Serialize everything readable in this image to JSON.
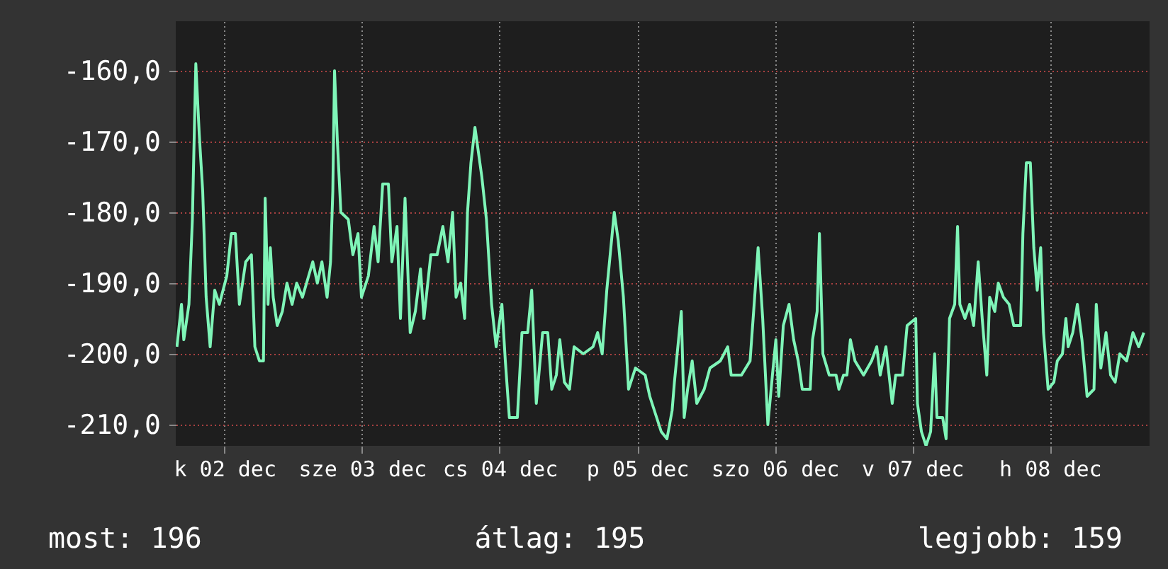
{
  "chart_data": {
    "type": "line",
    "x": [
      "--12-02T03:42",
      "--12-02T04:30",
      "--12-02T04:54",
      "--12-02T05:48",
      "--12-02T06:24",
      "--12-02T07:00",
      "--12-02T07:36",
      "--12-02T08:12",
      "--12-02T08:48",
      "--12-02T09:30",
      "--12-02T10:18",
      "--12-02T11:06",
      "--12-02T12:24",
      "--12-02T13:12",
      "--12-02T13:54",
      "--12-02T14:36",
      "--12-02T15:42",
      "--12-02T16:42",
      "--12-02T17:18",
      "--12-02T18:06",
      "--12-02T18:48",
      "--12-02T19:06",
      "--12-02T19:36",
      "--12-02T20:00",
      "--12-02T20:30",
      "--12-02T21:12",
      "--12-02T22:06",
      "--12-02T22:54",
      "--12-02T23:48",
      "--12-03T00:36",
      "--12-03T01:36",
      "--12-03T03:24",
      "--12-03T04:12",
      "--12-03T05:00",
      "--12-03T05:54",
      "--12-03T06:30",
      "--12-03T06:54",
      "--12-03T07:12",
      "--12-03T07:42",
      "--12-03T08:18",
      "--12-03T09:36",
      "--12-03T10:24",
      "--12-03T11:18",
      "--12-03T11:54",
      "--12-03T13:06",
      "--12-03T14:06",
      "--12-03T14:48",
      "--12-03T15:36",
      "--12-03T16:36",
      "--12-03T17:12",
      "--12-03T18:06",
      "--12-03T18:42",
      "--12-03T19:30",
      "--12-03T20:24",
      "--12-03T21:18",
      "--12-03T22:12",
      "--12-03T22:48",
      "--12-04T00:00",
      "--12-04T01:06",
      "--12-04T02:06",
      "--12-04T03:00",
      "--12-04T03:48",
      "--12-04T04:24",
      "--12-04T05:12",
      "--12-04T05:54",
      "--12-04T06:24",
      "--12-04T07:00",
      "--12-04T07:42",
      "--12-04T08:54",
      "--12-04T09:42",
      "--12-04T10:36",
      "--12-04T11:24",
      "--12-04T12:24",
      "--12-04T13:00",
      "--12-04T13:42",
      "--12-04T15:06",
      "--12-04T15:54",
      "--12-04T16:54",
      "--12-04T17:36",
      "--12-04T18:24",
      "--12-04T19:30",
      "--12-04T20:24",
      "--12-04T21:06",
      "--12-04T21:54",
      "--12-04T22:30",
      "--12-04T23:18",
      "--12-05T00:12",
      "--12-05T01:00",
      "--12-05T02:36",
      "--12-05T04:18",
      "--12-05T05:06",
      "--12-05T05:54",
      "--12-05T06:42",
      "--12-05T08:00",
      "--12-05T08:42",
      "--12-05T09:36",
      "--12-05T10:30",
      "--12-05T11:42",
      "--12-05T13:24",
      "--12-05T14:12",
      "--12-05T15:24",
      "--12-05T16:12",
      "--12-05T17:12",
      "--12-05T18:06",
      "--12-05T18:30",
      "--12-05T19:42",
      "--12-05T20:12",
      "--12-05T20:48",
      "--12-05T21:36",
      "--12-05T22:24",
      "--12-05T23:42",
      "--12-06T00:42",
      "--12-06T02:30",
      "--12-06T03:48",
      "--12-06T04:24",
      "--12-06T06:12",
      "--12-06T07:42",
      "--12-06T08:30",
      "--12-06T09:06",
      "--12-06T09:54",
      "--12-06T10:48",
      "--12-06T11:36",
      "--12-06T12:12",
      "--12-06T12:42",
      "--12-06T13:30",
      "--12-06T14:30",
      "--12-06T15:18",
      "--12-06T16:06",
      "--12-06T16:48",
      "--12-06T18:12",
      "--12-06T18:36",
      "--12-06T19:24",
      "--12-06T19:48",
      "--12-06T20:24",
      "--12-06T21:30",
      "--12-06T22:42",
      "--12-06T23:12",
      "--12-07T00:00",
      "--12-07T00:36",
      "--12-07T01:12",
      "--12-07T02:00",
      "--12-07T03:30",
      "--12-07T04:54",
      "--12-07T05:48",
      "--12-07T06:24",
      "--12-07T07:24",
      "--12-07T08:30",
      "--12-07T09:06",
      "--12-07T10:18",
      "--12-07T11:06",
      "--12-07T12:36",
      "--12-07T12:54",
      "--12-07T13:36",
      "--12-07T14:24",
      "--12-07T15:12",
      "--12-07T15:54",
      "--12-07T16:18",
      "--12-07T17:18",
      "--12-07T17:54",
      "--12-07T18:30",
      "--12-07T19:24",
      "--12-07T19:54",
      "--12-07T20:18",
      "--12-07T21:12",
      "--12-07T22:00",
      "--12-07T22:42",
      "--12-07T23:30",
      "--12-08T00:12",
      "--12-08T01:00",
      "--12-08T01:30",
      "--12-08T02:24",
      "--12-08T03:00",
      "--12-08T03:54",
      "--12-08T04:54",
      "--12-08T05:42",
      "--12-08T06:54",
      "--12-08T07:18",
      "--12-08T07:54",
      "--12-08T08:36",
      "--12-08T09:12",
      "--12-08T09:48",
      "--12-08T10:24",
      "--12-08T10:54",
      "--12-08T11:42",
      "--12-08T12:42",
      "--12-08T13:18",
      "--12-08T14:12",
      "--12-08T14:48",
      "--12-08T15:12",
      "--12-08T16:00",
      "--12-08T16:48",
      "--12-08T17:36",
      "--12-08T18:30",
      "--12-08T19:42",
      "--12-08T20:06",
      "--12-08T20:54",
      "--12-08T21:48",
      "--12-08T22:36",
      "--12-08T23:24",
      "--12-09T00:12",
      "--12-09T01:24",
      "--12-09T02:30",
      "--12-09T03:30",
      "--12-09T04:24"
    ],
    "series": [
      {
        "color": "#7ff5b8",
        "values": [
          -199,
          -193,
          -198,
          -193,
          -181,
          -159,
          -169,
          -177,
          -192,
          -199,
          -191,
          -193,
          -189,
          -183,
          -183,
          -193,
          -187,
          -186,
          -199,
          -201,
          -201,
          -178,
          -193,
          -185,
          -192,
          -196,
          -194,
          -190,
          -193,
          -190,
          -192,
          -187,
          -190,
          -187,
          -192,
          -187,
          -177,
          -160,
          -170,
          -180,
          -181,
          -186,
          -183,
          -192,
          -189,
          -182,
          -187,
          -176,
          -176,
          -187,
          -182,
          -195,
          -178,
          -197,
          -194,
          -188,
          -195,
          -186,
          -186,
          -182,
          -187,
          -180,
          -192,
          -190,
          -195,
          -180,
          -173,
          -168,
          -175,
          -181,
          -193,
          -199,
          -193,
          -201,
          -209,
          -209,
          -197,
          -197,
          -191,
          -207,
          -197,
          -197,
          -205,
          -203,
          -198,
          -204,
          -205,
          -199,
          -200,
          -199,
          -197,
          -200,
          -191,
          -180,
          -184,
          -192,
          -205,
          -202,
          -203,
          -206,
          -209,
          -211,
          -212,
          -208,
          -204,
          -194,
          -209,
          -205,
          -201,
          -207,
          -205,
          -202,
          -201,
          -199,
          -203,
          -203,
          -201,
          -192,
          -185,
          -195,
          -210,
          -203,
          -198,
          -206,
          -196,
          -193,
          -198,
          -201,
          -205,
          -205,
          -198,
          -194,
          -183,
          -200,
          -203,
          -203,
          -205,
          -203,
          -203,
          -198,
          -201,
          -203,
          -201,
          -199,
          -203,
          -199,
          -207,
          -203,
          -203,
          -196,
          -195,
          -207,
          -211,
          -213,
          -211,
          -200,
          -209,
          -209,
          -212,
          -195,
          -193,
          -182,
          -193,
          -195,
          -193,
          -196,
          -187,
          -195,
          -203,
          -192,
          -194,
          -190,
          -192,
          -193,
          -196,
          -196,
          -183,
          -173,
          -173,
          -185,
          -191,
          -185,
          -197,
          -205,
          -204,
          -201,
          -200,
          -195,
          -199,
          -197,
          -193,
          -198,
          -206,
          -205,
          -193,
          -202,
          -197,
          -203,
          -204,
          -200,
          -201,
          -197,
          -199,
          -197
        ]
      }
    ],
    "xlim": [
      "--12-02T03:30",
      "--12-09T05:24"
    ],
    "xticks": [
      {
        "value": "--12-02T12:00",
        "label": "k 02 dec"
      },
      {
        "value": "--12-03T12:00",
        "label": "sze 03 dec"
      },
      {
        "value": "--12-04T12:00",
        "label": "cs 04 dec"
      },
      {
        "value": "--12-05T12:00",
        "label": "p 05 dec"
      },
      {
        "value": "--12-06T12:00",
        "label": "szo 06 dec"
      },
      {
        "value": "--12-07T12:00",
        "label": "v 07 dec"
      },
      {
        "value": "--12-08T12:00",
        "label": "h 08 dec"
      }
    ],
    "ylim": [
      -213,
      -153
    ],
    "yticks": [
      {
        "value": -160,
        "label": "-160,0"
      },
      {
        "value": -170,
        "label": "-170,0"
      },
      {
        "value": -180,
        "label": "-180,0"
      },
      {
        "value": -190,
        "label": "-190,0"
      },
      {
        "value": -200,
        "label": "-200,0"
      },
      {
        "value": -210,
        "label": "-210,0"
      }
    ],
    "grid": true,
    "annotations": [
      "most: 196",
      "átlag: 195",
      "legjobb: 159"
    ]
  }
}
